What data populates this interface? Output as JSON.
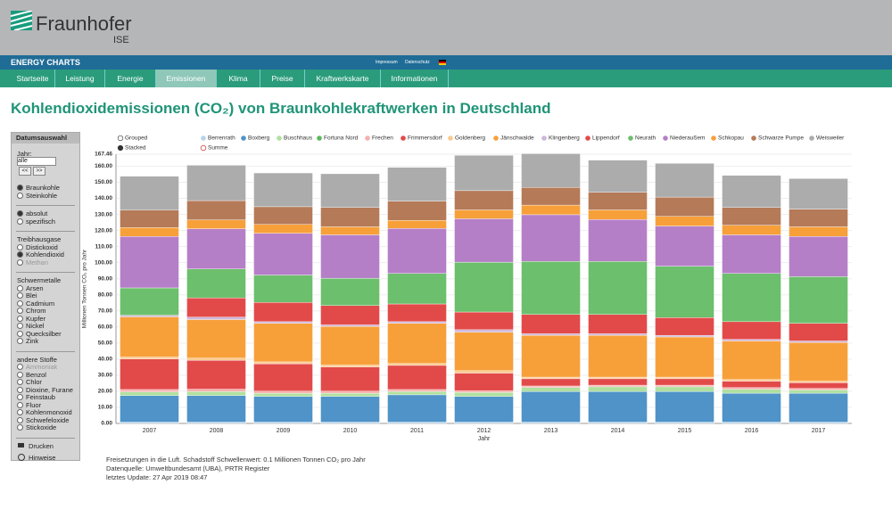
{
  "header": {
    "logo": "Fraunhofer",
    "institute": "ISE",
    "brand": "ENERGY CHARTS",
    "links": [
      "Impressum",
      "Datenschutz"
    ]
  },
  "nav": [
    "Startseite",
    "Leistung",
    "Energie",
    "Emissionen",
    "Klima",
    "Preise",
    "Kraftwerkskarte",
    "Informationen"
  ],
  "heading": "Kohlendioxidemissionen (CO₂) von Braunkohlekraftwerken in Deutschland",
  "sidebar": {
    "title": "Datumsauswahl",
    "year_label": "Jahr:",
    "year_value": "alle",
    "prev": "<<",
    "next": ">>",
    "groups": [
      {
        "options": [
          "Braunkohle",
          "Steinkohle"
        ]
      },
      {
        "options": [
          "absolut",
          "spezifisch"
        ]
      },
      {
        "title": "Treibhausgase",
        "options": [
          "Distickoxid",
          "Kohlendioxid",
          "Methan"
        ]
      },
      {
        "title": "Schwermetalle",
        "options": [
          "Arsen",
          "Blei",
          "Cadmium",
          "Chrom",
          "Kupfer",
          "Nickel",
          "Quecksilber",
          "Zink"
        ]
      },
      {
        "title": "andere Stoffe",
        "options": [
          "Ammoniak",
          "Benzol",
          "Chlor",
          "Dioxine, Furane",
          "Feinstaub",
          "Fluor",
          "Kohlenmonoxid",
          "Schwefeloxide",
          "Stickoxide"
        ]
      }
    ],
    "print": "Drucken",
    "info": "Hinweise"
  },
  "chart_data": {
    "type": "bar",
    "stacked": true,
    "grid": true,
    "modes": [
      "Grouped",
      "Stacked"
    ],
    "sum_label": "Summe",
    "x_label": "Jahr",
    "y_label": "Millionen Tonnen CO₂ pro Jahr",
    "categories": [
      "2007",
      "2008",
      "2009",
      "2010",
      "2011",
      "2012",
      "2013",
      "2014",
      "2015",
      "2016",
      "2017"
    ],
    "ylim": [
      0,
      167.46
    ],
    "yticks": [
      {
        "value": 0,
        "label": "0.00"
      },
      {
        "value": 10,
        "label": "10.00"
      },
      {
        "value": 20,
        "label": "20.00"
      },
      {
        "value": 30,
        "label": "30.00"
      },
      {
        "value": 40,
        "label": "40.00"
      },
      {
        "value": 50,
        "label": "50.00"
      },
      {
        "value": 60,
        "label": "60.00"
      },
      {
        "value": 70,
        "label": "70.00"
      },
      {
        "value": 80,
        "label": "80.00"
      },
      {
        "value": 90,
        "label": "90.00"
      },
      {
        "value": 100,
        "label": "100.00"
      },
      {
        "value": 110,
        "label": "110.00"
      },
      {
        "value": 120,
        "label": "120.00"
      },
      {
        "value": 130,
        "label": "130.00"
      },
      {
        "value": 140,
        "label": "140.00"
      },
      {
        "value": 150,
        "label": "150.00"
      },
      {
        "value": 160,
        "label": "160.00"
      },
      {
        "value": 167.46,
        "label": "167.46"
      }
    ],
    "series": [
      {
        "name": "Berrenrath",
        "color": "#b5d3ea",
        "values": [
          0.8,
          0.8,
          0.8,
          0.8,
          0.8,
          0.8,
          0.8,
          0.8,
          0.8,
          0.8,
          0.8
        ]
      },
      {
        "name": "Boxberg",
        "color": "#4f93c8",
        "values": [
          16.5,
          16.5,
          16,
          16,
          17,
          16,
          19,
          19,
          19,
          18,
          18
        ]
      },
      {
        "name": "Buschhaus",
        "color": "#b0e0a0",
        "values": [
          2.3,
          2.5,
          2,
          2,
          2,
          2.5,
          2.5,
          3,
          3,
          2.5,
          2
        ]
      },
      {
        "name": "Fortuna Nord",
        "color": "#5ab85a",
        "values": [
          0,
          0,
          0,
          0,
          0,
          0,
          0,
          0,
          0,
          0,
          0
        ]
      },
      {
        "name": "Frechen",
        "color": "#f7b0ae",
        "values": [
          1.5,
          1.5,
          1.3,
          1.3,
          1.3,
          1,
          1,
          1,
          1,
          1,
          1
        ]
      },
      {
        "name": "Frimmersdorf",
        "color": "#e24a4a",
        "values": [
          19,
          18,
          17,
          15,
          15,
          11,
          4.5,
          4,
          4,
          4,
          3.5
        ]
      },
      {
        "name": "Goldenberg",
        "color": "#fbc98f",
        "values": [
          1.2,
          1.3,
          1.2,
          1.2,
          1.2,
          1.5,
          1,
          1,
          1,
          1,
          1
        ]
      },
      {
        "name": "Jänschwalde",
        "color": "#f7a03a",
        "values": [
          25,
          24,
          24,
          24,
          25,
          24,
          26,
          26,
          25,
          24,
          24
        ]
      },
      {
        "name": "Klingenberg",
        "color": "#cdb7dc",
        "values": [
          1,
          1.5,
          1,
          1,
          1,
          1.5,
          1,
          1,
          1,
          1,
          1
        ]
      },
      {
        "name": "Lippendorf",
        "color": "#e24a4a",
        "values": [
          0,
          12,
          12,
          12,
          11,
          11,
          12,
          12,
          11,
          11,
          11
        ]
      },
      {
        "name": "Neurath",
        "color": "#6cbf6c",
        "values": [
          17,
          18,
          17,
          17,
          19,
          31,
          33,
          33,
          32,
          30,
          29
        ]
      },
      {
        "name": "Niederaußem",
        "color": "#b57fc8",
        "values": [
          32,
          25,
          26,
          27,
          28,
          27,
          29,
          26,
          25,
          24,
          25
        ]
      },
      {
        "name": "Schkopau",
        "color": "#f7a03a",
        "values": [
          5.5,
          5.5,
          5.5,
          5,
          5,
          5.5,
          6,
          6,
          6,
          6,
          6
        ]
      },
      {
        "name": "Schwarze Pumpe",
        "color": "#b57a58",
        "values": [
          11,
          12,
          11,
          12,
          12,
          12,
          11,
          11,
          12,
          11,
          11
        ]
      },
      {
        "name": "Weisweiler",
        "color": "#acacac",
        "values": [
          21,
          22,
          21,
          21,
          21,
          22,
          21,
          20,
          21,
          20,
          19
        ]
      }
    ]
  },
  "footer": [
    "Freisetzungen in die Luft. Schadstoff Schwellenwert: 0.1 Millionen Tonnen CO₂ pro Jahr",
    "Datenquelle: Umweltbundesamt (UBA), PRTR Register",
    "letztes Update: 27 Apr 2019 08:47"
  ]
}
